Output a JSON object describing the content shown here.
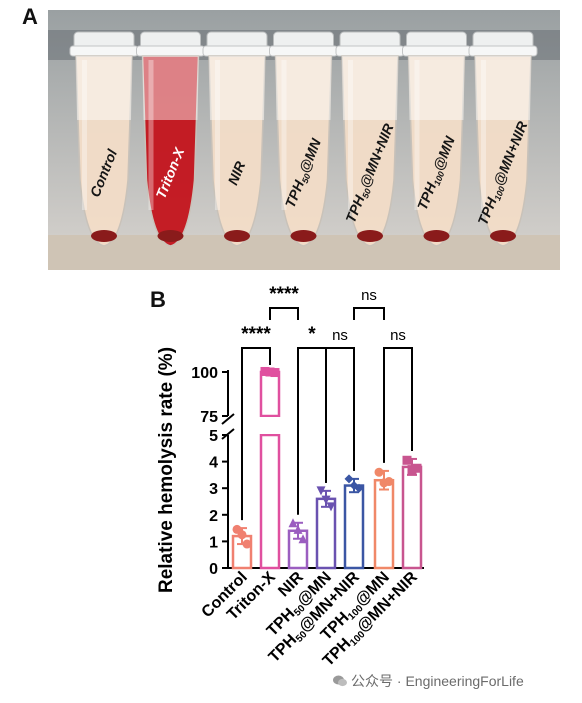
{
  "panel_a_label": "A",
  "panel_b_label": "B",
  "photo": {
    "tubes": [
      {
        "label": "Control",
        "color": "#f3ddc8"
      },
      {
        "label": "Triton-X",
        "color": "#c4141d"
      },
      {
        "label": "NIR",
        "color": "#f3ddc8"
      },
      {
        "label": "TPH50@MN",
        "color": "#f3ddc8"
      },
      {
        "label": "TPH50@MN+NIR",
        "color": "#f3ddc8"
      },
      {
        "label": "TPH100@MN",
        "color": "#f3ddc8"
      },
      {
        "label": "TPH100@MN+NIR",
        "color": "#f3ddc8"
      }
    ],
    "tube_label_parts": [
      [
        "Control"
      ],
      [
        "Triton-X"
      ],
      [
        "NIR"
      ],
      [
        "TPH",
        "50",
        "@MN"
      ],
      [
        "TPH",
        "50",
        "@MN+NIR"
      ],
      [
        "TPH",
        "100",
        "@MN"
      ],
      [
        "TPH",
        "100",
        "@MN+NIR"
      ]
    ]
  },
  "chart_data": {
    "type": "bar",
    "ylabel": "Relative hemolysis rate (%)",
    "axis_break": {
      "lower": [
        0,
        5
      ],
      "upper": [
        75,
        100
      ]
    },
    "yticks_lower": [
      0,
      1,
      2,
      3,
      4,
      5
    ],
    "yticks_upper": [
      75,
      100
    ],
    "categories": [
      "Control",
      "Triton-X",
      "NIR",
      "TPH50@MN",
      "TPH50@MN+NIR",
      "TPH100@MN",
      "TPH100@MN+NIR"
    ],
    "category_label_parts": [
      [
        "Control"
      ],
      [
        "Triton-X"
      ],
      [
        "NIR"
      ],
      [
        "TPH",
        "50",
        "@MN"
      ],
      [
        "TPH",
        "50",
        "@MN+NIR"
      ],
      [
        "TPH",
        "100",
        "@MN"
      ],
      [
        "TPH",
        "100",
        "@MN+NIR"
      ]
    ],
    "values": [
      1.2,
      100,
      1.4,
      2.6,
      3.1,
      3.3,
      3.8
    ],
    "errors": [
      0.3,
      0.4,
      0.3,
      0.3,
      0.25,
      0.35,
      0.3
    ],
    "points": [
      [
        1.45,
        1.25,
        0.9
      ],
      [
        100.3,
        100.0,
        99.7
      ],
      [
        1.7,
        1.45,
        1.1
      ],
      [
        2.9,
        2.55,
        2.3
      ],
      [
        3.35,
        3.1,
        3.0
      ],
      [
        3.6,
        3.2,
        3.25
      ],
      [
        4.05,
        3.7,
        3.75
      ]
    ],
    "colors": [
      "#f08070",
      "#e0509f",
      "#9b5ec0",
      "#6a52b0",
      "#3b56a4",
      "#f08868",
      "#c8558f"
    ],
    "markers": [
      "circle",
      "square",
      "triangle-up",
      "triangle-down",
      "diamond",
      "circle",
      "square"
    ],
    "significance": [
      {
        "from": 0,
        "to": 1,
        "label": "****",
        "level": 1
      },
      {
        "from": 1,
        "to": 2,
        "label": "****",
        "level": 2
      },
      {
        "from": 2,
        "to": 3,
        "label": "*",
        "level": 1
      },
      {
        "from": 3,
        "to": 4,
        "label": "ns",
        "level": 1
      },
      {
        "from": 4,
        "to": 5,
        "label": "ns",
        "level": 2
      },
      {
        "from": 5,
        "to": 6,
        "label": "ns",
        "level": 1
      }
    ]
  },
  "watermark": "公众号 · EngineeringForLife"
}
